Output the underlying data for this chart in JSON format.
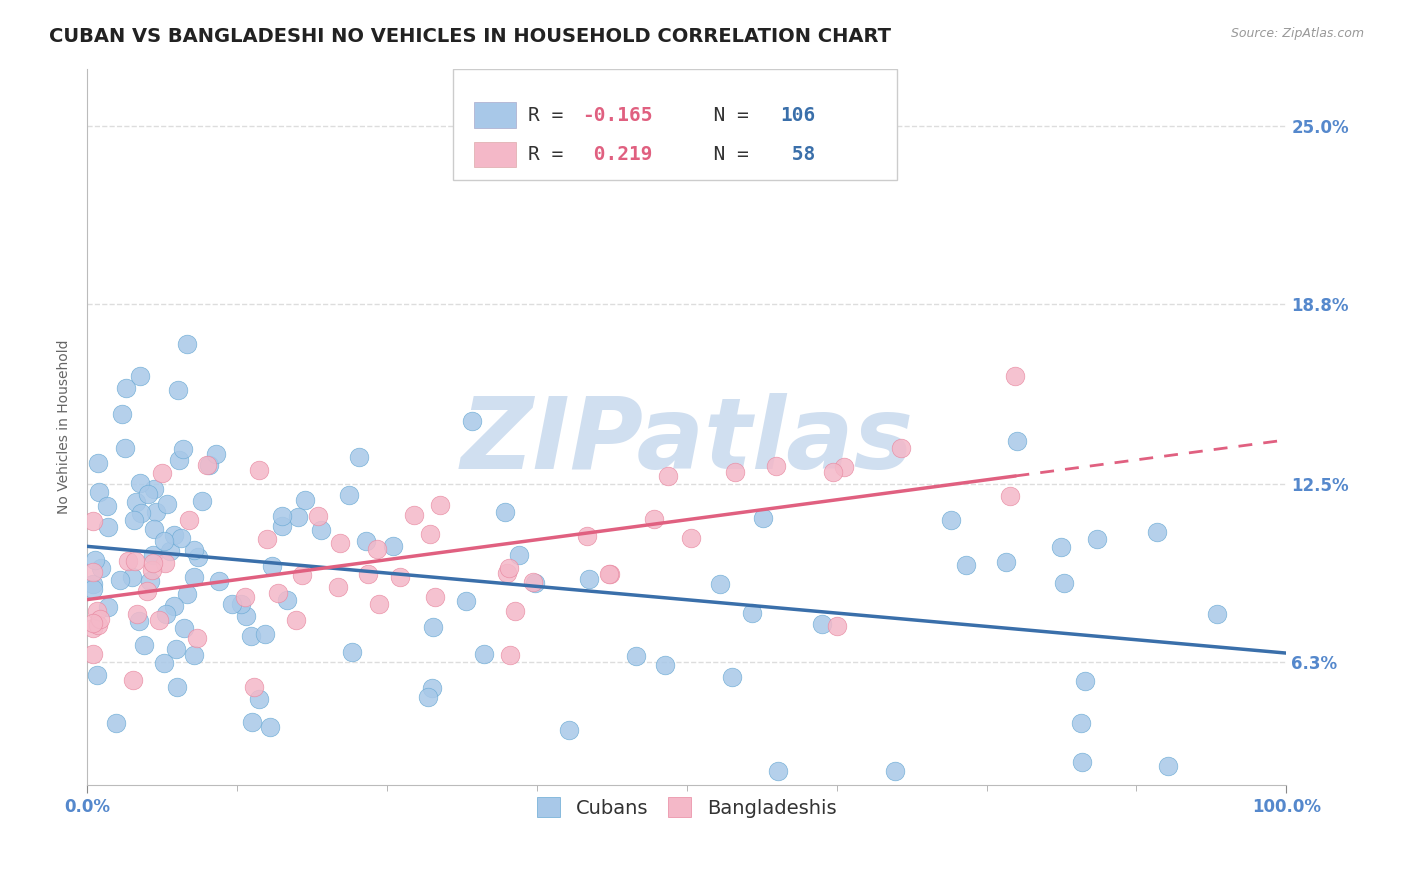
{
  "title": "CUBAN VS BANGLADESHI NO VEHICLES IN HOUSEHOLD CORRELATION CHART",
  "source_text": "Source: ZipAtlas.com",
  "ylabel": "No Vehicles in Household",
  "xlim": [
    0.0,
    100.0
  ],
  "ylim": [
    2.0,
    27.0
  ],
  "yticks": [
    6.3,
    12.5,
    18.8,
    25.0
  ],
  "ytick_labels": [
    "6.3%",
    "12.5%",
    "18.8%",
    "25.0%"
  ],
  "xtick_labels": [
    "0.0%",
    "100.0%"
  ],
  "cubans_color": "#a8c8e8",
  "cubans_edge_color": "#6aaad4",
  "cubans_line_color": "#3a6faa",
  "bangladeshis_color": "#f4b8c8",
  "bangladeshis_edge_color": "#e888a0",
  "bangladeshis_line_color": "#e06080",
  "cubans_R": -0.165,
  "cubans_N": 106,
  "bangladeshis_R": 0.219,
  "bangladeshis_N": 58,
  "watermark": "ZIPatlas",
  "watermark_color": "#d0dff0",
  "title_fontsize": 14,
  "axis_label_fontsize": 10,
  "tick_fontsize": 12,
  "legend_fontsize": 14,
  "background_color": "#ffffff",
  "grid_color": "#dddddd",
  "legend_R_color": "#e06080",
  "legend_N_color": "#3a6faa",
  "tick_color": "#5588cc"
}
